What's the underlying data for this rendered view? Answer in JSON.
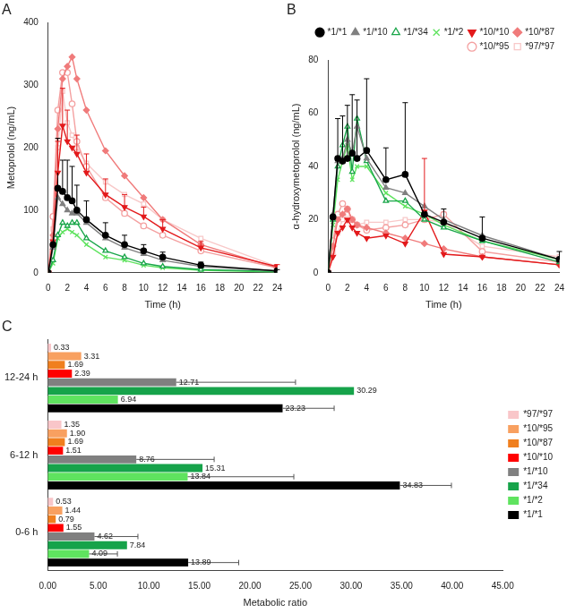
{
  "chart_data": [
    {
      "type": "line",
      "title": "A",
      "x_label": "Time (h)",
      "y_label": "Metoprolol (ng/mL)",
      "x": [
        0,
        0.5,
        1,
        1.5,
        2,
        2.5,
        3,
        4,
        6,
        8,
        10,
        12,
        16,
        24
      ],
      "xlim": [
        0,
        24
      ],
      "xticks": [
        0,
        2,
        4,
        6,
        8,
        10,
        12,
        14,
        16,
        18,
        20,
        22,
        24
      ],
      "ylim": [
        0,
        400
      ],
      "yticks": [
        0,
        100,
        200,
        300,
        400
      ],
      "grid": false,
      "series": [
        {
          "name": "*1/*1",
          "color": "#000000",
          "marker": "circle",
          "values": [
            0,
            45,
            135,
            130,
            120,
            115,
            100,
            85,
            60,
            45,
            35,
            25,
            12,
            3
          ],
          "errors": [
            null,
            null,
            80,
            50,
            60,
            55,
            40,
            30,
            20,
            15,
            10,
            8,
            5,
            2
          ]
        },
        {
          "name": "*1/*10",
          "color": "#808080",
          "marker": "triangle",
          "values": [
            0,
            40,
            120,
            110,
            100,
            95,
            95,
            80,
            55,
            40,
            30,
            20,
            10,
            3
          ]
        },
        {
          "name": "*1/*34",
          "color": "#1aa64a",
          "marker": "triangle-open",
          "values": [
            0,
            20,
            60,
            80,
            75,
            80,
            80,
            55,
            35,
            25,
            15,
            10,
            5,
            2
          ]
        },
        {
          "name": "*1/*2",
          "color": "#5fe35f",
          "marker": "cross",
          "values": [
            0,
            15,
            55,
            65,
            70,
            65,
            60,
            45,
            25,
            20,
            12,
            8,
            4,
            1
          ]
        },
        {
          "name": "*10/*10",
          "color": "#e31a1c",
          "marker": "triangle-down",
          "values": [
            0,
            50,
            160,
            235,
            210,
            200,
            190,
            160,
            125,
            105,
            90,
            70,
            40,
            10
          ],
          "errors": [
            null,
            null,
            50,
            60,
            50,
            null,
            30,
            30,
            25,
            20,
            15,
            15,
            10,
            3
          ]
        },
        {
          "name": "*10/*87",
          "color": "#f07b7b",
          "marker": "diamond",
          "values": [
            0,
            60,
            230,
            310,
            330,
            345,
            310,
            260,
            195,
            155,
            120,
            85,
            45,
            8
          ]
        },
        {
          "name": "*10/*95",
          "color": "#f4a0a0",
          "marker": "circle-open",
          "values": [
            0,
            90,
            260,
            320,
            320,
            270,
            210,
            170,
            120,
            95,
            75,
            60,
            35,
            8
          ]
        },
        {
          "name": "*97/*97",
          "color": "#f8c8c8",
          "marker": "square-open",
          "values": [
            0,
            70,
            200,
            290,
            240,
            220,
            200,
            175,
            145,
            125,
            110,
            85,
            55,
            10
          ]
        }
      ]
    },
    {
      "type": "line",
      "title": "B",
      "x_label": "Time (h)",
      "y_label": "α-hydroxymetoprolol (ng/mL)",
      "x": [
        0,
        0.5,
        1,
        1.5,
        2,
        2.5,
        3,
        4,
        6,
        8,
        10,
        12,
        16,
        24
      ],
      "xlim": [
        0,
        24
      ],
      "xticks": [
        0,
        2,
        4,
        6,
        8,
        10,
        12,
        14,
        16,
        18,
        20,
        22,
        24
      ],
      "ylim": [
        0,
        80
      ],
      "yticks": [
        0,
        20,
        40,
        60,
        80
      ],
      "grid": false,
      "legend": "top",
      "series": [
        {
          "name": "*1/*1",
          "color": "#000000",
          "marker": "circle",
          "values": [
            0,
            21,
            43,
            42,
            43,
            45,
            43,
            46,
            35,
            37,
            22,
            19,
            13,
            5
          ],
          "errors": [
            null,
            null,
            15,
            17,
            20,
            22,
            22,
            27,
            12,
            27,
            null,
            5,
            8,
            3
          ]
        },
        {
          "name": "*1/*10",
          "color": "#808080",
          "marker": "triangle",
          "values": [
            0,
            22,
            42,
            43,
            50,
            45,
            55,
            43,
            32,
            30,
            25,
            20,
            14,
            5
          ]
        },
        {
          "name": "*1/*34",
          "color": "#1aa64a",
          "marker": "triangle-open",
          "values": [
            0,
            20,
            40,
            48,
            55,
            38,
            58,
            42,
            27,
            27,
            20,
            17,
            12,
            4
          ]
        },
        {
          "name": "*1/*2",
          "color": "#5fe35f",
          "marker": "cross",
          "values": [
            0,
            18,
            35,
            42,
            48,
            35,
            40,
            40,
            30,
            25,
            22,
            18,
            12,
            5
          ]
        },
        {
          "name": "*10/*10",
          "color": "#e31a1c",
          "marker": "triangle-down",
          "values": [
            0,
            6,
            15,
            17,
            20,
            17,
            15,
            13,
            14,
            11,
            23,
            7,
            6,
            3
          ],
          "errors": [
            null,
            null,
            null,
            null,
            null,
            null,
            null,
            null,
            null,
            null,
            20,
            null,
            null,
            null
          ]
        },
        {
          "name": "*10/*87",
          "color": "#f07b7b",
          "marker": "diamond",
          "values": [
            0,
            10,
            20,
            22,
            24,
            20,
            18,
            17,
            15,
            13,
            11,
            9,
            6,
            3
          ]
        },
        {
          "name": "*10/*95",
          "color": "#f4a0a0",
          "marker": "circle-open",
          "values": [
            0,
            12,
            22,
            26,
            24,
            20,
            18,
            16,
            17,
            18,
            20,
            22,
            8,
            4
          ]
        },
        {
          "name": "*97/*97",
          "color": "#f8c8c8",
          "marker": "square-open",
          "values": [
            0,
            8,
            15,
            20,
            22,
            20,
            18,
            19,
            19,
            20,
            20,
            19,
            10,
            6
          ]
        }
      ]
    },
    {
      "type": "bar",
      "title": "C",
      "orientation": "horizontal",
      "x_label": "Metabolic ratio",
      "categories": [
        "12-24 h",
        "6-12 h",
        "0-6 h"
      ],
      "xlim": [
        0,
        45
      ],
      "xticks": [
        {
          "value": 0,
          "label": "0.00"
        },
        {
          "value": 5,
          "label": "5.00"
        },
        {
          "value": 10,
          "label": "10.00"
        },
        {
          "value": 15,
          "label": "15.00"
        },
        {
          "value": 20,
          "label": "20.00"
        },
        {
          "value": 25,
          "label": "25.00"
        },
        {
          "value": 30,
          "label": "30.00"
        },
        {
          "value": 35,
          "label": "35.00"
        },
        {
          "value": 40,
          "label": "40.00"
        },
        {
          "value": 45,
          "label": "45.00"
        }
      ],
      "grid": false,
      "legend": "right",
      "data_labels": true,
      "series": [
        {
          "name": "*97/*97",
          "color": "#f9c6c9",
          "values": [
            0.33,
            1.35,
            0.53
          ],
          "value_labels": [
            "0.33",
            "1.35",
            "0.53"
          ]
        },
        {
          "name": "*10/*95",
          "color": "#f8a060",
          "values": [
            3.31,
            1.9,
            1.44
          ],
          "value_labels": [
            "3.31",
            "1.90",
            "1.44"
          ]
        },
        {
          "name": "*10/*87",
          "color": "#f07f1e",
          "values": [
            1.69,
            1.69,
            0.79
          ],
          "value_labels": [
            "1.69",
            "1.69",
            "0.79"
          ]
        },
        {
          "name": "*10/*10",
          "color": "#ff0000",
          "values": [
            2.39,
            1.51,
            1.55
          ],
          "value_labels": [
            "2.39",
            "1.51",
            "1.55"
          ]
        },
        {
          "name": "*1/*10",
          "color": "#808080",
          "values": [
            12.71,
            8.76,
            4.62
          ],
          "value_labels": [
            "12.71",
            "8.76",
            "4.62"
          ],
          "errors": [
            11.8,
            7.7,
            4.3
          ]
        },
        {
          "name": "*1/*34",
          "color": "#16a34a",
          "values": [
            30.29,
            15.31,
            7.84
          ],
          "value_labels": [
            "30.29",
            "15.31",
            "7.84"
          ]
        },
        {
          "name": "*1/*2",
          "color": "#5fe35f",
          "values": [
            6.94,
            13.84,
            4.09
          ],
          "value_labels": [
            "6.94",
            "13.84",
            "4.09"
          ],
          "errors": [
            null,
            10.5,
            2.8
          ]
        },
        {
          "name": "*1/*1",
          "color": "#000000",
          "values": [
            23.23,
            34.83,
            13.89
          ],
          "value_labels": [
            "23.23",
            "34.83",
            "13.89"
          ],
          "errors": [
            5.1,
            5.1,
            5.0
          ]
        }
      ]
    }
  ]
}
